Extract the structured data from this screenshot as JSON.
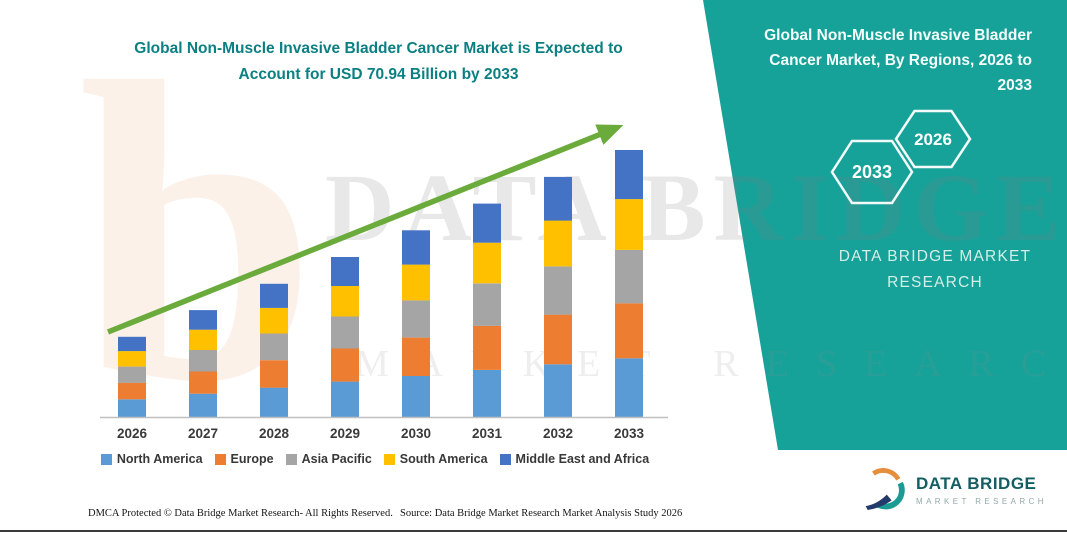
{
  "chart_data": {
    "type": "bar",
    "stacked": true,
    "title": "Global Non-Muscle Invasive Bladder Cancer Market is Expected to Account for USD 70.94 Billion by 2033",
    "unit": "USD Billion",
    "highlight_value": "USD 70.94 Billion",
    "highlight_year": "2033",
    "categories": [
      "2026",
      "2027",
      "2028",
      "2029",
      "2030",
      "2031",
      "2032",
      "2033"
    ],
    "series": [
      {
        "name": "North America",
        "color": "#5B9BD5",
        "values": [
          4.7,
          6.2,
          7.8,
          9.4,
          10.9,
          12.5,
          14.0,
          15.6
        ]
      },
      {
        "name": "Europe",
        "color": "#ED7D31",
        "values": [
          4.4,
          5.9,
          7.3,
          8.8,
          10.2,
          11.7,
          13.2,
          14.6
        ]
      },
      {
        "name": "Asia Pacific",
        "color": "#A5A5A5",
        "values": [
          4.3,
          5.7,
          7.1,
          8.5,
          9.9,
          11.3,
          12.8,
          14.2
        ]
      },
      {
        "name": "South America",
        "color": "#FFC000",
        "values": [
          4.1,
          5.4,
          6.8,
          8.1,
          9.5,
          10.8,
          12.2,
          13.5
        ]
      },
      {
        "name": "Middle East and Africa",
        "color": "#4472C4",
        "values": [
          3.8,
          5.2,
          6.4,
          7.7,
          9.1,
          10.4,
          11.6,
          13.04
        ]
      }
    ],
    "totals_estimated": [
      21.3,
      28.4,
      35.4,
      42.5,
      49.6,
      56.7,
      63.8,
      70.94
    ],
    "values_estimated": true,
    "ylim": [
      0,
      75
    ],
    "y_axis_visible": false,
    "grid": false,
    "legend_position": "bottom",
    "trend_arrow": true,
    "trend_arrow_color": "#6AAB3C"
  },
  "right_panel": {
    "title": "Global Non-Muscle Invasive Bladder Cancer Market, By Regions, 2026 to 2033",
    "hexagons": [
      {
        "label": "2033"
      },
      {
        "label": "2026"
      }
    ],
    "brand_text": "DATA BRIDGE MARKET RESEARCH",
    "background_color": "#17A299"
  },
  "watermark": {
    "line1": "DATA BRIDGE",
    "line2": "MARKET RESEARCH",
    "logo_glyph": "b"
  },
  "footer": {
    "dmca": "DMCA Protected © Data Bridge Market Research-  All Rights Reserved.",
    "source": "Source: Data Bridge Market Research  Market Analysis Study 2026"
  },
  "logo": {
    "name": "DATA BRIDGE",
    "sub": "MARKET RESEARCH"
  }
}
